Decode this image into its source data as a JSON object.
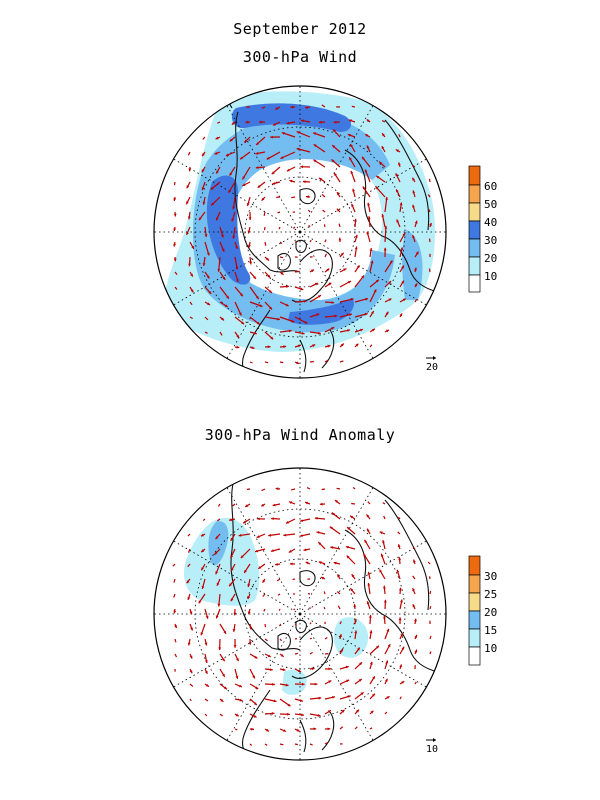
{
  "header": {
    "title": "September 2012"
  },
  "panels": [
    {
      "title": "300-hPa Wind",
      "colorbar": {
        "labels": [
          "10",
          "20",
          "30",
          "40",
          "50",
          "60"
        ],
        "colors": [
          "#ffffff",
          "#b7eef8",
          "#73bdf0",
          "#3f78e0",
          "#f5db8a",
          "#f5a54d",
          "#ee6a10"
        ]
      },
      "reference_vector": "20"
    },
    {
      "title": "300-hPa Wind Anomaly",
      "colorbar": {
        "labels": [
          "10",
          "15",
          "20",
          "25",
          "30"
        ],
        "colors": [
          "#ffffff",
          "#b7eef8",
          "#73bdf0",
          "#f5db8a",
          "#f5a54d",
          "#ee6a10"
        ]
      },
      "reference_vector": "10"
    }
  ]
}
